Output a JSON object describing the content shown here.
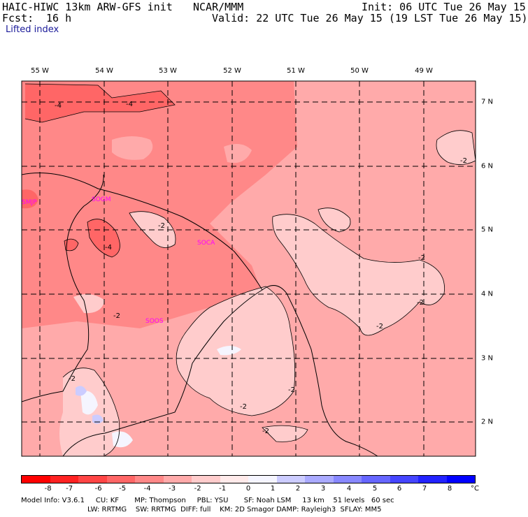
{
  "header": {
    "model": "HAIC-HIWC 13km ARW-GFS init",
    "org": "NCAR/MMM",
    "fcst_label": "Fcst:",
    "fcst_value": "16 h",
    "init": "Init: 06 UTC Tue 26 May 15",
    "valid": "Valid: 22 UTC Tue 26 May 15 (19 LST Tue 26 May 15)",
    "field": "Lifted index"
  },
  "map": {
    "longitudes": [
      "55 W",
      "54 W",
      "53 W",
      "52 W",
      "51 W",
      "50 W",
      "49 W"
    ],
    "latitudes": [
      "7 N",
      "6 N",
      "5 N",
      "4 N",
      "3 N",
      "2 N"
    ],
    "stations": [
      "SMJP",
      "SOGM",
      "SOCA",
      "SOOS"
    ],
    "contour_labels": [
      "-4",
      "-4",
      "-2",
      "-4",
      "-2",
      "-2",
      "-2",
      "-2",
      "-2",
      "-2",
      "-2",
      "-2",
      "-2"
    ]
  },
  "colorbar": {
    "unit": "°C",
    "ticks": [
      "-8",
      "-7",
      "-6",
      "-5",
      "-4",
      "-3",
      "-2",
      "-1",
      "0",
      "1",
      "2",
      "3",
      "4",
      "5",
      "6",
      "7",
      "8"
    ],
    "colors": [
      "#ff0000",
      "#ff2222",
      "#ff4545",
      "#ff6666",
      "#ff8888",
      "#ffaaaa",
      "#ffcccc",
      "#ffeaea",
      "#f5f5ff",
      "#ccccff",
      "#aaaaff",
      "#8888ff",
      "#6666ff",
      "#4545ff",
      "#2222ff",
      "#0000ff"
    ]
  },
  "info": {
    "line1": "Model Info: V3.6.1     CU: KF       MP: Thompson     PBL: YSU       SF: Noah LSM     13 km    51 levels   60 sec",
    "line2": "LW: RRTMG    SW: RRTMG  DIFF: full    KM: 2D Smagor DAMP: Rayleigh3  SFLAY: MM5"
  }
}
